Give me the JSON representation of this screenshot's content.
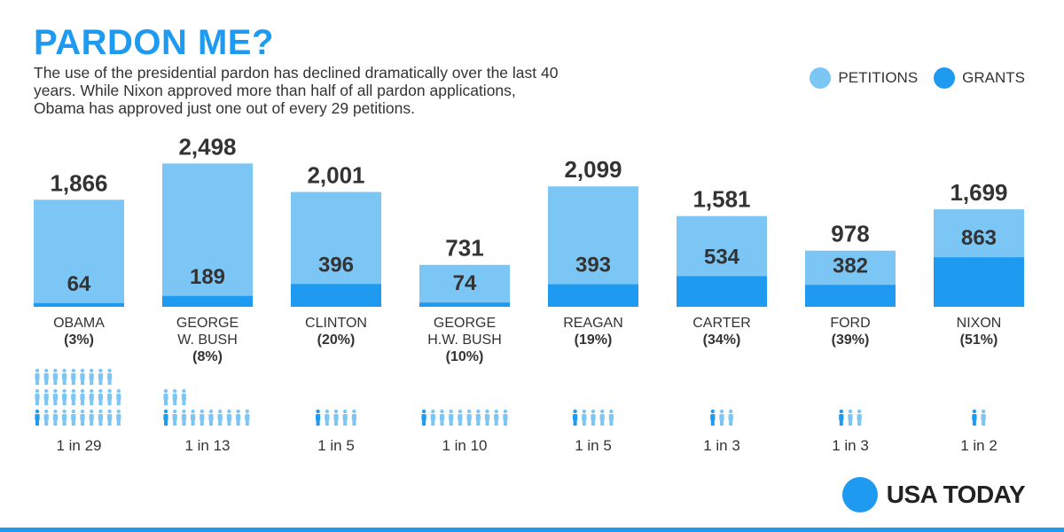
{
  "header": {
    "title": "PARDON ME?",
    "subtitle": "The use of the presidential pardon has declined dramatically over the last 40 years. While Nixon approved more than half of all pardon applications, Obama has approved just one out of every 29 petitions."
  },
  "legend": {
    "petitions_label": "PETITIONS",
    "grants_label": "GRANTS"
  },
  "colors": {
    "petitions": "#7cc6f5",
    "grants": "#1e9bf0",
    "title": "#1e9bf0",
    "text": "#333333"
  },
  "brand": {
    "name": "USA TODAY"
  },
  "chart_data": {
    "type": "bar",
    "categories": [
      "OBAMA",
      "GEORGE W. BUSH",
      "CLINTON",
      "GEORGE H.W. BUSH",
      "REAGAN",
      "CARTER",
      "FORD",
      "NIXON"
    ],
    "category_lines": [
      [
        "OBAMA"
      ],
      [
        "GEORGE",
        "W. BUSH"
      ],
      [
        "CLINTON"
      ],
      [
        "GEORGE",
        "H.W. BUSH"
      ],
      [
        "REAGAN"
      ],
      [
        "CARTER"
      ],
      [
        "FORD"
      ],
      [
        "NIXON"
      ]
    ],
    "percent_labels": [
      "(3%)",
      "(8%)",
      "(20%)",
      "(10%)",
      "(19%)",
      "(34%)",
      "(39%)",
      "(51%)"
    ],
    "series": [
      {
        "name": "PETITIONS",
        "values": [
          1866,
          2498,
          2001,
          731,
          2099,
          1581,
          978,
          1699
        ]
      },
      {
        "name": "GRANTS",
        "values": [
          64,
          189,
          396,
          74,
          393,
          534,
          382,
          863
        ]
      }
    ],
    "petition_labels": [
      "1,866",
      "2,498",
      "2,001",
      "731",
      "2,099",
      "1,581",
      "978",
      "1,699"
    ],
    "grant_labels": [
      "64",
      "189",
      "396",
      "74",
      "393",
      "534",
      "382",
      "863"
    ],
    "ratio_labels": [
      "1 in 29",
      "1 in 13",
      "1 in 5",
      "1 in 10",
      "1 in 5",
      "1 in 3",
      "1 in 3",
      "1 in 2"
    ],
    "ratio_denominators": [
      29,
      13,
      5,
      10,
      5,
      3,
      3,
      2
    ],
    "legend_position": "top-right",
    "grid": false
  }
}
